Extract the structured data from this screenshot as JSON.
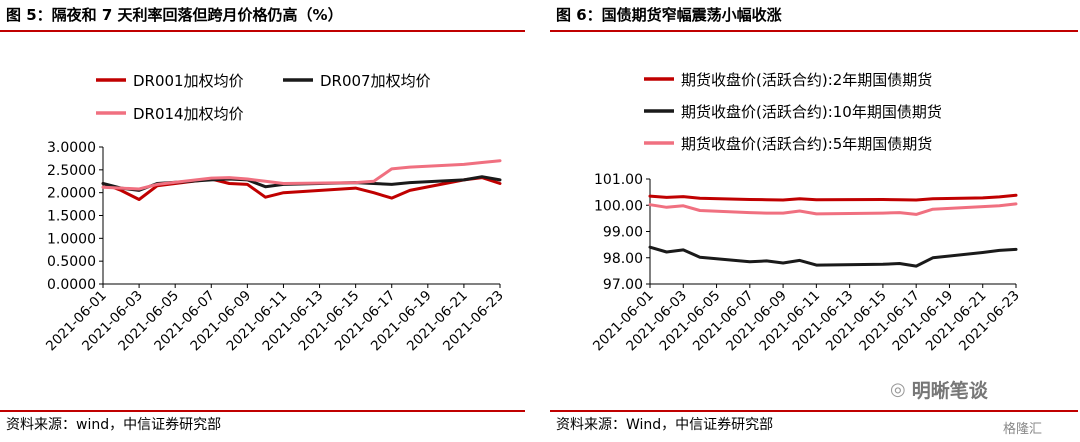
{
  "charts": [
    {
      "title": "图 5：隔夜和 7 天利率回落但跨月价格仍高（%）",
      "source": "资料来源：wind，中信证券研究部",
      "chart_data": {
        "type": "line",
        "title": "图 5：隔夜和 7 天利率回落但跨月价格仍高（%）",
        "x": [
          "2021-06-01",
          "2021-06-02",
          "2021-06-03",
          "2021-06-04",
          "2021-06-07",
          "2021-06-08",
          "2021-06-09",
          "2021-06-10",
          "2021-06-11",
          "2021-06-15",
          "2021-06-16",
          "2021-06-17",
          "2021-06-18",
          "2021-06-21",
          "2021-06-22",
          "2021-06-23"
        ],
        "x_tick_labels": [
          "2021-06-01",
          "2021-06-03",
          "2021-06-05",
          "2021-06-07",
          "2021-06-09",
          "2021-06-11",
          "2021-06-13",
          "2021-06-15",
          "2021-06-17",
          "2021-06-19",
          "2021-06-21",
          "2021-06-23"
        ],
        "ylim": [
          0,
          3
        ],
        "y_ticks": [
          "0.0000",
          "0.5000",
          "1.0000",
          "1.5000",
          "2.0000",
          "2.5000",
          "3.0000"
        ],
        "y_tick_values": [
          0,
          0.5,
          1,
          1.5,
          2,
          2.5,
          3
        ],
        "grid": false,
        "legend_position": "top",
        "series": [
          {
            "name": "DR001加权均价",
            "color": "#c00000",
            "values": [
              2.2,
              2.05,
              1.85,
              2.15,
              2.3,
              2.2,
              2.18,
              1.9,
              2.0,
              2.1,
              2.0,
              1.88,
              2.05,
              2.28,
              2.33,
              2.2
            ]
          },
          {
            "name": "DR007加权均价",
            "color": "#1a1a1a",
            "values": [
              2.2,
              2.1,
              2.05,
              2.2,
              2.28,
              2.3,
              2.28,
              2.13,
              2.18,
              2.22,
              2.2,
              2.18,
              2.22,
              2.28,
              2.35,
              2.28
            ]
          },
          {
            "name": "DR014加权均价",
            "color": "#f07080",
            "values": [
              2.12,
              2.1,
              2.08,
              2.18,
              2.32,
              2.33,
              2.3,
              2.25,
              2.2,
              2.22,
              2.25,
              2.52,
              2.56,
              2.62,
              2.66,
              2.7
            ]
          }
        ]
      }
    },
    {
      "title": "图 6：国债期货窄幅震荡小幅收涨",
      "source": "资料来源：Wind，中信证券研究部",
      "chart_data": {
        "type": "line",
        "title": "图 6：国债期货窄幅震荡小幅收涨",
        "x": [
          "2021-06-01",
          "2021-06-02",
          "2021-06-03",
          "2021-06-04",
          "2021-06-07",
          "2021-06-08",
          "2021-06-09",
          "2021-06-10",
          "2021-06-11",
          "2021-06-15",
          "2021-06-16",
          "2021-06-17",
          "2021-06-18",
          "2021-06-21",
          "2021-06-22",
          "2021-06-23"
        ],
        "x_tick_labels": [
          "2021-06-01",
          "2021-06-03",
          "2021-06-05",
          "2021-06-07",
          "2021-06-09",
          "2021-06-11",
          "2021-06-13",
          "2021-06-15",
          "2021-06-17",
          "2021-06-19",
          "2021-06-21",
          "2021-06-23"
        ],
        "ylim": [
          97,
          101
        ],
        "y_ticks": [
          "97.00",
          "98.00",
          "99.00",
          "100.00",
          "101.00"
        ],
        "y_tick_values": [
          97,
          98,
          99,
          100,
          101
        ],
        "grid": false,
        "legend_position": "top",
        "series": [
          {
            "name": "期货收盘价(活跃合约):2年期国债期货",
            "color": "#c00000",
            "values": [
              100.35,
              100.3,
              100.33,
              100.27,
              100.22,
              100.21,
              100.2,
              100.25,
              100.21,
              100.22,
              100.21,
              100.2,
              100.25,
              100.28,
              100.32,
              100.38
            ]
          },
          {
            "name": "期货收盘价(活跃合约):10年期国债期货",
            "color": "#1a1a1a",
            "values": [
              98.4,
              98.22,
              98.3,
              98.02,
              97.85,
              97.88,
              97.8,
              97.9,
              97.72,
              97.75,
              97.78,
              97.68,
              98.0,
              98.2,
              98.28,
              98.32
            ]
          },
          {
            "name": "期货收盘价(活跃合约):5年期国债期货",
            "color": "#f07080",
            "values": [
              100.02,
              99.92,
              99.98,
              99.8,
              99.72,
              99.7,
              99.7,
              99.78,
              99.67,
              99.7,
              99.72,
              99.65,
              99.85,
              99.95,
              99.98,
              100.05
            ]
          }
        ]
      }
    }
  ],
  "watermark": {
    "icon": "wechat-bubble-icon",
    "text": "明晰笔谈"
  },
  "watermark2": {
    "text": "格隆汇"
  }
}
